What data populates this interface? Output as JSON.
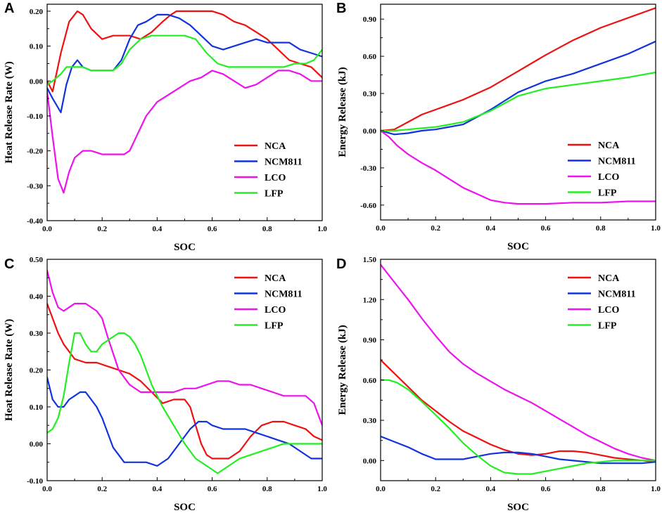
{
  "chart_data": [
    {
      "panel": "A",
      "type": "line",
      "xlabel": "SOC",
      "ylabel": "Heat Release Rate (W)",
      "xlim": [
        0,
        1.0
      ],
      "ylim": [
        -0.4,
        0.22
      ],
      "xticks": [
        0.0,
        0.2,
        0.4,
        0.6,
        0.8,
        1.0
      ],
      "xtick_labels": [
        "0.0",
        "0.2",
        "0.4",
        "0.6",
        "0.8",
        "1.0"
      ],
      "yticks": [
        -0.4,
        -0.3,
        -0.2,
        -0.1,
        0.0,
        0.1,
        0.2
      ],
      "ytick_labels": [
        "-0.40",
        "-0.30",
        "-0.20",
        "-0.10",
        "0.00",
        "0.10",
        "0.20"
      ],
      "legend_position": "lower-right",
      "series": [
        {
          "name": "NCA",
          "color": "#ee1111",
          "x": [
            0,
            0.02,
            0.05,
            0.08,
            0.11,
            0.13,
            0.16,
            0.2,
            0.24,
            0.3,
            0.34,
            0.38,
            0.42,
            0.45,
            0.47,
            0.52,
            0.56,
            0.6,
            0.64,
            0.68,
            0.72,
            0.76,
            0.8,
            0.84,
            0.88,
            0.92,
            0.96,
            1.0
          ],
          "y": [
            0.0,
            -0.03,
            0.08,
            0.17,
            0.2,
            0.19,
            0.15,
            0.12,
            0.13,
            0.13,
            0.12,
            0.14,
            0.17,
            0.19,
            0.2,
            0.2,
            0.2,
            0.2,
            0.19,
            0.17,
            0.16,
            0.14,
            0.12,
            0.09,
            0.06,
            0.05,
            0.04,
            0.01
          ]
        },
        {
          "name": "NCM811",
          "color": "#1133dd",
          "x": [
            0,
            0.02,
            0.05,
            0.07,
            0.09,
            0.11,
            0.13,
            0.16,
            0.2,
            0.24,
            0.27,
            0.3,
            0.33,
            0.36,
            0.4,
            0.44,
            0.48,
            0.52,
            0.56,
            0.6,
            0.64,
            0.68,
            0.72,
            0.76,
            0.8,
            0.84,
            0.88,
            0.92,
            0.96,
            1.0
          ],
          "y": [
            -0.02,
            -0.05,
            -0.09,
            -0.01,
            0.04,
            0.06,
            0.04,
            0.03,
            0.03,
            0.03,
            0.06,
            0.12,
            0.16,
            0.17,
            0.19,
            0.19,
            0.18,
            0.16,
            0.13,
            0.1,
            0.09,
            0.1,
            0.11,
            0.12,
            0.11,
            0.11,
            0.11,
            0.09,
            0.08,
            0.07
          ]
        },
        {
          "name": "LCO",
          "color": "#ee11ee",
          "x": [
            0,
            0.02,
            0.04,
            0.06,
            0.08,
            0.1,
            0.13,
            0.16,
            0.2,
            0.24,
            0.28,
            0.3,
            0.33,
            0.36,
            0.4,
            0.44,
            0.48,
            0.52,
            0.56,
            0.6,
            0.64,
            0.68,
            0.72,
            0.76,
            0.8,
            0.84,
            0.88,
            0.92,
            0.96,
            1.0
          ],
          "y": [
            -0.03,
            -0.16,
            -0.28,
            -0.32,
            -0.26,
            -0.22,
            -0.2,
            -0.2,
            -0.21,
            -0.21,
            -0.21,
            -0.2,
            -0.15,
            -0.1,
            -0.06,
            -0.04,
            -0.02,
            0.0,
            0.01,
            0.03,
            0.02,
            0.0,
            -0.02,
            -0.01,
            0.01,
            0.03,
            0.03,
            0.02,
            0.0,
            0.0
          ]
        },
        {
          "name": "LFP",
          "color": "#22ee22",
          "x": [
            0,
            0.02,
            0.05,
            0.07,
            0.1,
            0.13,
            0.16,
            0.2,
            0.24,
            0.27,
            0.3,
            0.34,
            0.38,
            0.42,
            0.46,
            0.5,
            0.54,
            0.58,
            0.62,
            0.66,
            0.7,
            0.74,
            0.78,
            0.82,
            0.86,
            0.9,
            0.94,
            0.97,
            0.99,
            1.0
          ],
          "y": [
            -0.01,
            0.0,
            0.02,
            0.04,
            0.04,
            0.04,
            0.03,
            0.03,
            0.03,
            0.05,
            0.09,
            0.12,
            0.13,
            0.13,
            0.13,
            0.13,
            0.12,
            0.08,
            0.05,
            0.04,
            0.04,
            0.04,
            0.04,
            0.04,
            0.04,
            0.05,
            0.05,
            0.06,
            0.08,
            0.09
          ]
        }
      ]
    },
    {
      "panel": "B",
      "type": "line",
      "xlabel": "SOC",
      "ylabel": "Energy Release (kJ)",
      "xlim": [
        0,
        1.0
      ],
      "ylim": [
        -0.72,
        1.02
      ],
      "xticks": [
        0.0,
        0.2,
        0.4,
        0.6,
        0.8,
        1.0
      ],
      "xtick_labels": [
        "0.0",
        "0.2",
        "0.4",
        "0.6",
        "0.8",
        "1.0"
      ],
      "yticks": [
        -0.6,
        -0.3,
        0.0,
        0.3,
        0.6,
        0.9
      ],
      "ytick_labels": [
        "-0.60",
        "-0.30",
        "0.00",
        "0.30",
        "0.60",
        "0.90"
      ],
      "legend_position": "lower-right",
      "series": [
        {
          "name": "NCA",
          "color": "#ee1111",
          "x": [
            0,
            0.05,
            0.1,
            0.15,
            0.2,
            0.3,
            0.4,
            0.5,
            0.6,
            0.7,
            0.8,
            0.9,
            1.0
          ],
          "y": [
            0.0,
            0.01,
            0.07,
            0.13,
            0.17,
            0.25,
            0.35,
            0.48,
            0.61,
            0.73,
            0.83,
            0.91,
            0.99
          ]
        },
        {
          "name": "NCM811",
          "color": "#1133dd",
          "x": [
            0,
            0.05,
            0.1,
            0.15,
            0.2,
            0.3,
            0.4,
            0.5,
            0.6,
            0.7,
            0.8,
            0.9,
            1.0
          ],
          "y": [
            0.0,
            -0.03,
            -0.02,
            0.0,
            0.01,
            0.05,
            0.17,
            0.31,
            0.4,
            0.46,
            0.54,
            0.62,
            0.72
          ]
        },
        {
          "name": "LCO",
          "color": "#ee11ee",
          "x": [
            0,
            0.03,
            0.06,
            0.1,
            0.15,
            0.2,
            0.25,
            0.3,
            0.35,
            0.4,
            0.45,
            0.5,
            0.55,
            0.6,
            0.7,
            0.8,
            0.9,
            1.0
          ],
          "y": [
            0.0,
            -0.05,
            -0.12,
            -0.19,
            -0.26,
            -0.32,
            -0.39,
            -0.46,
            -0.51,
            -0.56,
            -0.58,
            -0.59,
            -0.59,
            -0.59,
            -0.58,
            -0.58,
            -0.57,
            -0.57
          ]
        },
        {
          "name": "LFP",
          "color": "#22ee22",
          "x": [
            0,
            0.05,
            0.1,
            0.15,
            0.2,
            0.3,
            0.4,
            0.5,
            0.6,
            0.7,
            0.8,
            0.9,
            1.0
          ],
          "y": [
            0.0,
            0.0,
            0.01,
            0.02,
            0.03,
            0.07,
            0.16,
            0.28,
            0.34,
            0.37,
            0.4,
            0.43,
            0.47
          ]
        }
      ]
    },
    {
      "panel": "C",
      "type": "line",
      "xlabel": "SOC",
      "ylabel": "Heat Release Rate (W)",
      "xlim": [
        0,
        1.0
      ],
      "ylim": [
        -0.1,
        0.5
      ],
      "xticks": [
        0.0,
        0.2,
        0.4,
        0.6,
        0.8,
        1.0
      ],
      "xtick_labels": [
        "0.0",
        "0.2",
        "0.4",
        "0.6",
        "0.8",
        "1.0"
      ],
      "yticks": [
        -0.1,
        0.0,
        0.1,
        0.2,
        0.3,
        0.4,
        0.5
      ],
      "ytick_labels": [
        "-0.10",
        "0.00",
        "0.10",
        "0.20",
        "0.30",
        "0.40",
        "0.50"
      ],
      "legend_position": "top-right",
      "series": [
        {
          "name": "NCA",
          "color": "#ee1111",
          "x": [
            0,
            0.02,
            0.04,
            0.06,
            0.08,
            0.1,
            0.14,
            0.18,
            0.22,
            0.26,
            0.3,
            0.34,
            0.38,
            0.42,
            0.46,
            0.48,
            0.5,
            0.52,
            0.54,
            0.56,
            0.58,
            0.6,
            0.62,
            0.66,
            0.7,
            0.74,
            0.78,
            0.82,
            0.86,
            0.9,
            0.94,
            0.97,
            1.0
          ],
          "y": [
            0.38,
            0.34,
            0.3,
            0.27,
            0.25,
            0.23,
            0.22,
            0.22,
            0.21,
            0.2,
            0.19,
            0.17,
            0.14,
            0.11,
            0.12,
            0.12,
            0.12,
            0.1,
            0.05,
            0.0,
            -0.03,
            -0.04,
            -0.04,
            -0.04,
            -0.02,
            0.02,
            0.05,
            0.06,
            0.06,
            0.05,
            0.04,
            0.02,
            0.01
          ]
        },
        {
          "name": "NCM811",
          "color": "#1133dd",
          "x": [
            0,
            0.02,
            0.04,
            0.06,
            0.08,
            0.1,
            0.12,
            0.14,
            0.16,
            0.18,
            0.2,
            0.22,
            0.24,
            0.26,
            0.28,
            0.32,
            0.36,
            0.4,
            0.44,
            0.48,
            0.52,
            0.55,
            0.58,
            0.6,
            0.64,
            0.68,
            0.72,
            0.76,
            0.8,
            0.84,
            0.88,
            0.92,
            0.96,
            1.0
          ],
          "y": [
            0.18,
            0.12,
            0.1,
            0.1,
            0.12,
            0.13,
            0.14,
            0.14,
            0.12,
            0.1,
            0.07,
            0.03,
            -0.01,
            -0.03,
            -0.05,
            -0.05,
            -0.05,
            -0.06,
            -0.04,
            0.0,
            0.04,
            0.06,
            0.06,
            0.05,
            0.04,
            0.04,
            0.04,
            0.03,
            0.02,
            0.01,
            0.0,
            -0.02,
            -0.04,
            -0.04
          ]
        },
        {
          "name": "LCO",
          "color": "#ee11ee",
          "x": [
            0,
            0.02,
            0.04,
            0.06,
            0.08,
            0.1,
            0.14,
            0.18,
            0.2,
            0.22,
            0.26,
            0.3,
            0.34,
            0.38,
            0.42,
            0.46,
            0.5,
            0.54,
            0.58,
            0.62,
            0.66,
            0.7,
            0.74,
            0.78,
            0.82,
            0.86,
            0.9,
            0.94,
            0.97,
            1.0
          ],
          "y": [
            0.47,
            0.41,
            0.37,
            0.36,
            0.37,
            0.38,
            0.38,
            0.36,
            0.34,
            0.29,
            0.2,
            0.16,
            0.14,
            0.14,
            0.14,
            0.14,
            0.15,
            0.15,
            0.16,
            0.17,
            0.17,
            0.16,
            0.16,
            0.15,
            0.14,
            0.13,
            0.13,
            0.13,
            0.11,
            0.05
          ]
        },
        {
          "name": "LFP",
          "color": "#22ee22",
          "x": [
            0,
            0.02,
            0.04,
            0.06,
            0.08,
            0.1,
            0.12,
            0.14,
            0.16,
            0.18,
            0.2,
            0.22,
            0.24,
            0.26,
            0.28,
            0.3,
            0.32,
            0.34,
            0.36,
            0.38,
            0.42,
            0.46,
            0.5,
            0.54,
            0.58,
            0.62,
            0.66,
            0.7,
            0.74,
            0.78,
            0.82,
            0.86,
            0.9,
            0.94,
            1.0
          ],
          "y": [
            0.03,
            0.04,
            0.07,
            0.13,
            0.22,
            0.3,
            0.3,
            0.27,
            0.25,
            0.25,
            0.27,
            0.28,
            0.29,
            0.3,
            0.3,
            0.29,
            0.27,
            0.24,
            0.2,
            0.16,
            0.1,
            0.05,
            0.0,
            -0.04,
            -0.06,
            -0.08,
            -0.06,
            -0.04,
            -0.03,
            -0.02,
            -0.01,
            0.0,
            0.0,
            0.0,
            0.0
          ]
        }
      ]
    },
    {
      "panel": "D",
      "type": "line",
      "xlabel": "SOC",
      "ylabel": "Energy Release (kJ)",
      "xlim": [
        0,
        1.0
      ],
      "ylim": [
        -0.15,
        1.5
      ],
      "xticks": [
        0.0,
        0.2,
        0.4,
        0.6,
        0.8,
        1.0
      ],
      "xtick_labels": [
        "0.0",
        "0.2",
        "0.4",
        "0.6",
        "0.8",
        "1.0"
      ],
      "yticks": [
        0.0,
        0.3,
        0.6,
        0.9,
        1.2,
        1.5
      ],
      "ytick_labels": [
        "0.00",
        "0.30",
        "0.60",
        "0.90",
        "1.20",
        "1.50"
      ],
      "legend_position": "top-right",
      "series": [
        {
          "name": "NCA",
          "color": "#ee1111",
          "x": [
            0,
            0.05,
            0.1,
            0.15,
            0.2,
            0.25,
            0.3,
            0.35,
            0.4,
            0.45,
            0.5,
            0.55,
            0.6,
            0.65,
            0.7,
            0.75,
            0.8,
            0.85,
            0.9,
            0.95,
            1.0
          ],
          "y": [
            0.75,
            0.65,
            0.55,
            0.45,
            0.37,
            0.29,
            0.22,
            0.17,
            0.12,
            0.08,
            0.05,
            0.04,
            0.05,
            0.07,
            0.07,
            0.06,
            0.04,
            0.02,
            0.01,
            0.0,
            -0.01
          ]
        },
        {
          "name": "NCM811",
          "color": "#1133dd",
          "x": [
            0,
            0.05,
            0.1,
            0.15,
            0.2,
            0.25,
            0.3,
            0.35,
            0.4,
            0.45,
            0.5,
            0.55,
            0.6,
            0.65,
            0.7,
            0.75,
            0.8,
            0.85,
            0.9,
            0.95,
            1.0
          ],
          "y": [
            0.18,
            0.14,
            0.1,
            0.05,
            0.01,
            0.01,
            0.01,
            0.03,
            0.05,
            0.06,
            0.06,
            0.05,
            0.03,
            0.01,
            0.0,
            -0.01,
            -0.02,
            -0.02,
            -0.02,
            -0.02,
            -0.01
          ]
        },
        {
          "name": "LCO",
          "color": "#ee11ee",
          "x": [
            0,
            0.05,
            0.1,
            0.15,
            0.2,
            0.25,
            0.3,
            0.35,
            0.4,
            0.45,
            0.5,
            0.55,
            0.6,
            0.65,
            0.7,
            0.75,
            0.8,
            0.85,
            0.9,
            0.95,
            1.0
          ],
          "y": [
            1.46,
            1.33,
            1.2,
            1.06,
            0.93,
            0.81,
            0.72,
            0.65,
            0.59,
            0.53,
            0.48,
            0.43,
            0.37,
            0.31,
            0.25,
            0.19,
            0.14,
            0.09,
            0.05,
            0.02,
            0.0
          ]
        },
        {
          "name": "LFP",
          "color": "#22ee22",
          "x": [
            0,
            0.03,
            0.06,
            0.1,
            0.15,
            0.2,
            0.25,
            0.3,
            0.35,
            0.4,
            0.45,
            0.5,
            0.55,
            0.6,
            0.65,
            0.7,
            0.75,
            0.8,
            0.85,
            0.9,
            0.95,
            1.0
          ],
          "y": [
            0.6,
            0.6,
            0.58,
            0.53,
            0.44,
            0.34,
            0.24,
            0.13,
            0.04,
            -0.04,
            -0.09,
            -0.1,
            -0.1,
            -0.08,
            -0.06,
            -0.04,
            -0.02,
            -0.01,
            0.0,
            0.0,
            0.0,
            0.0
          ]
        }
      ]
    }
  ]
}
